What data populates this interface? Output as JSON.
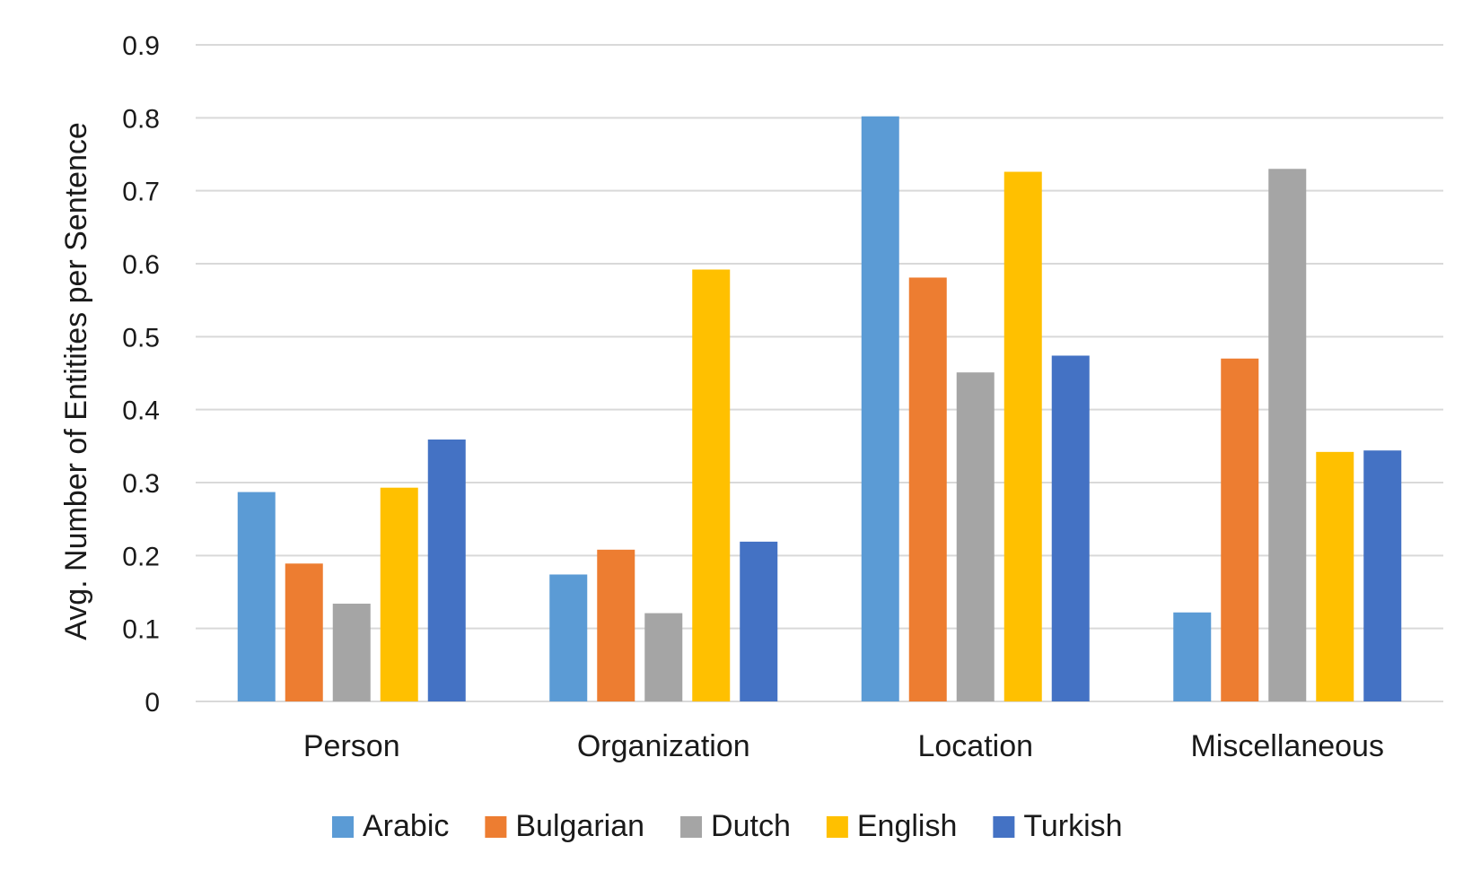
{
  "chart_data": {
    "type": "bar",
    "title": "",
    "xlabel": "",
    "ylabel": "Avg. Number of Entitites per Sentence",
    "ylim": [
      0,
      0.9
    ],
    "yticks": [
      0,
      0.1,
      0.2,
      0.3,
      0.4,
      0.5,
      0.6,
      0.7,
      0.8,
      0.9
    ],
    "ytick_labels": [
      "0",
      "0.1",
      "0.2",
      "0.3",
      "0.4",
      "0.5",
      "0.6",
      "0.7",
      "0.8",
      "0.9"
    ],
    "grid": true,
    "legend_position": "bottom",
    "categories": [
      "Person",
      "Organization",
      "Location",
      "Miscellaneous"
    ],
    "series": [
      {
        "name": "Arabic",
        "color": "#5B9BD5",
        "values": [
          0.287,
          0.174,
          0.802,
          0.122
        ]
      },
      {
        "name": "Bulgarian",
        "color": "#ED7D31",
        "values": [
          0.189,
          0.208,
          0.581,
          0.47
        ]
      },
      {
        "name": "Dutch",
        "color": "#A5A5A5",
        "values": [
          0.134,
          0.121,
          0.451,
          0.73
        ]
      },
      {
        "name": "English",
        "color": "#FFC000",
        "values": [
          0.293,
          0.592,
          0.726,
          0.342
        ]
      },
      {
        "name": "Turkish",
        "color": "#4472C4",
        "values": [
          0.359,
          0.219,
          0.474,
          0.344
        ]
      }
    ]
  }
}
